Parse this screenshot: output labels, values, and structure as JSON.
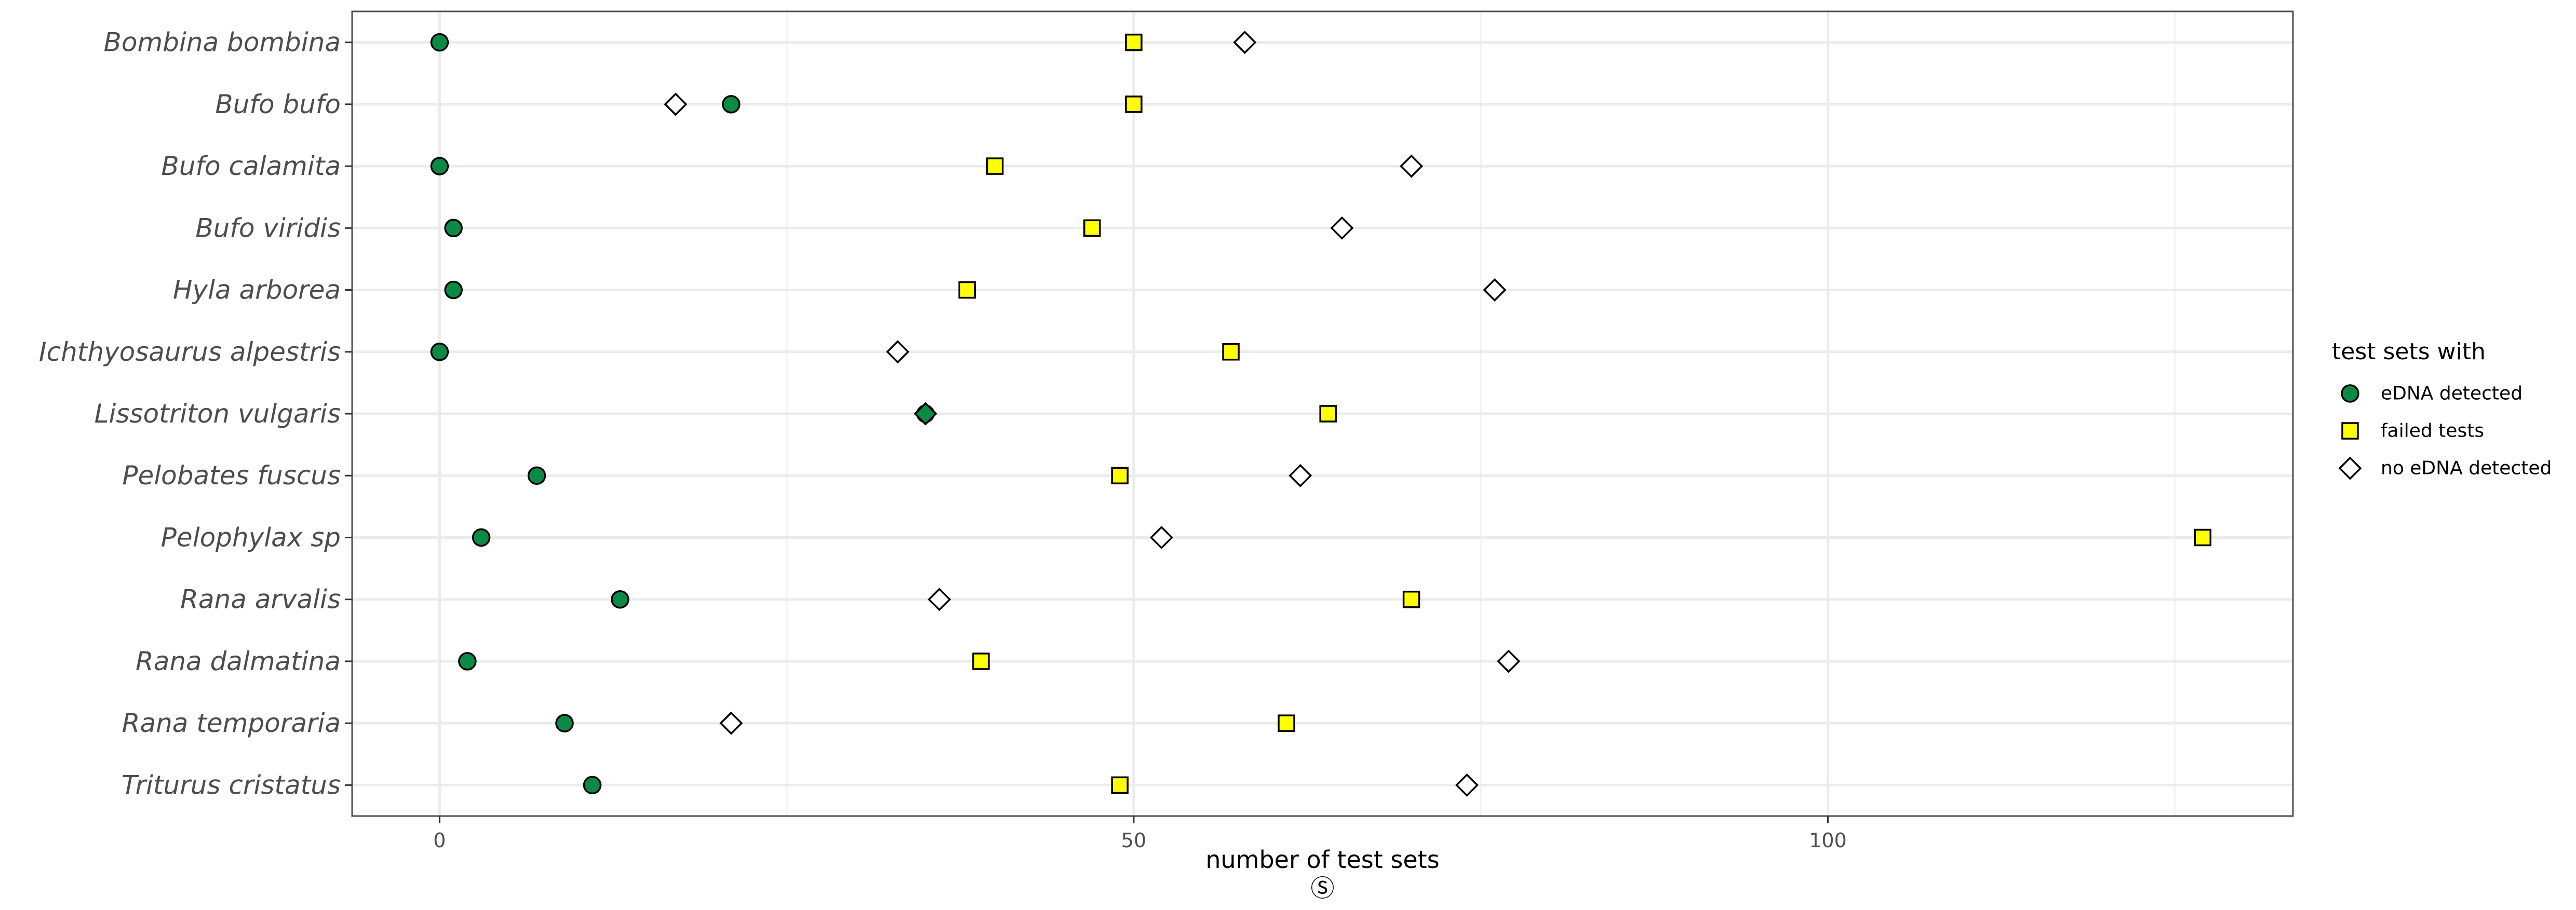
{
  "chart_data": {
    "type": "scatter",
    "title": "",
    "xlabel": "number of test sets",
    "xlabel_sub": "Ⓢ",
    "ylabel": "",
    "xlim": [
      -6.3,
      133.5
    ],
    "xticks": [
      0,
      50,
      100
    ],
    "xtick_labels": [
      "0",
      "50",
      "100"
    ],
    "grid": true,
    "legend_title": "test sets with",
    "legend_position": "right",
    "categories": [
      "Bombina bombina",
      "Bufo bufo",
      "Bufo calamita",
      "Bufo viridis",
      "Hyla arborea",
      "Ichthyosaurus alpestris",
      "Lissotriton vulgaris",
      "Pelobates fuscus",
      "Pelophylax sp",
      "Rana arvalis",
      "Rana dalmatina",
      "Rana temporaria",
      "Triturus cristatus"
    ],
    "series": [
      {
        "name": "eDNA detected",
        "shape": "circle",
        "color": "#0b8a45",
        "values": [
          0,
          21,
          0,
          1,
          1,
          0,
          35,
          7,
          3,
          13,
          2,
          9,
          11
        ]
      },
      {
        "name": "failed tests",
        "shape": "square",
        "color": "#ffff00",
        "values": [
          50,
          50,
          40,
          47,
          38,
          57,
          64,
          49,
          127,
          70,
          39,
          61,
          49
        ]
      },
      {
        "name": "no eDNA detected",
        "shape": "diamond",
        "color": "#ffffff",
        "values": [
          58,
          17,
          70,
          65,
          76,
          33,
          35,
          62,
          52,
          36,
          77,
          21,
          74
        ]
      }
    ]
  }
}
